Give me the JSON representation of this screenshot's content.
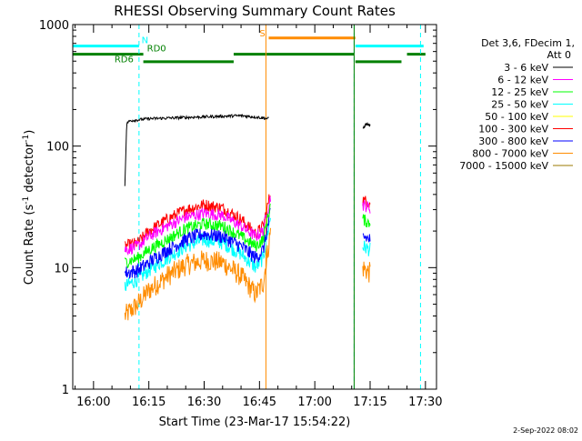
{
  "chart_data": {
    "type": "line",
    "title": "RHESSI Observing Summary Count Rates",
    "xlabel": "Start Time (23-Mar-17 15:54:22)",
    "ylabel_main": "Count Rate (s",
    "ylabel_sup1": "-1",
    "ylabel_mid": " detector",
    "ylabel_sup2": "-1",
    "ylabel_end": ")",
    "y_scale": "log",
    "ylim": [
      1,
      1000
    ],
    "xlim": [
      "15:54:22",
      "17:33:00"
    ],
    "y_ticks": [
      {
        "value": 1,
        "label": "1"
      },
      {
        "value": 10,
        "label": "10"
      },
      {
        "value": 100,
        "label": "100"
      },
      {
        "value": 1000,
        "label": "1000"
      }
    ],
    "x_ticks": [
      {
        "value": "16:00",
        "label": "16:00"
      },
      {
        "value": "16:15",
        "label": "16:15"
      },
      {
        "value": "16:30",
        "label": "16:30"
      },
      {
        "value": "16:45",
        "label": "16:45"
      },
      {
        "value": "17:00",
        "label": "17:00"
      },
      {
        "value": "17:15",
        "label": "17:15"
      },
      {
        "value": "17:30",
        "label": "17:30"
      }
    ],
    "legend_header": [
      "Det 3,6, FDecim 1,",
      "Att 0"
    ],
    "legend_placement": "right",
    "series": [
      {
        "name": "3 - 6 keV",
        "color": "#000000",
        "segments": [
          {
            "x": [
              "16:08:30",
              "16:09:00",
              "16:10:00",
              "16:15:00",
              "16:25:00",
              "16:35:00",
              "16:40:00",
              "16:45:00",
              "16:47:30"
            ],
            "y": [
              48,
              155,
              162,
              168,
              172,
              176,
              178,
              172,
              168
            ]
          },
          {
            "x": [
              "17:13:00",
              "17:14:00",
              "17:15:00"
            ],
            "y": [
              140,
              152,
              148
            ]
          }
        ]
      },
      {
        "name": "6 - 12 keV",
        "color": "#ff00ff",
        "segments": [
          {
            "x": [
              "16:08:30",
              "16:12:00",
              "16:15:00",
              "16:20:00",
              "16:25:00",
              "16:30:00",
              "16:35:00",
              "16:40:00",
              "16:44:00",
              "16:46:00",
              "16:47:00",
              "16:48:00"
            ],
            "y": [
              14,
              15,
              18,
              22,
              26,
              28,
              27,
              22,
              18,
              20,
              28,
              38
            ]
          },
          {
            "x": [
              "17:13:00",
              "17:15:00"
            ],
            "y": [
              33,
              31
            ]
          }
        ]
      },
      {
        "name": "12 - 25 keV",
        "color": "#00ff00",
        "segments": [
          {
            "x": [
              "16:08:30",
              "16:12:00",
              "16:15:00",
              "16:20:00",
              "16:25:00",
              "16:30:00",
              "16:35:00",
              "16:40:00",
              "16:44:00",
              "16:46:00",
              "16:47:00",
              "16:48:00"
            ],
            "y": [
              11,
              12,
              14,
              17,
              21,
              23,
              22,
              18,
              15,
              17,
              24,
              33
            ]
          },
          {
            "x": [
              "17:13:00",
              "17:15:00"
            ],
            "y": [
              25,
              23
            ]
          }
        ]
      },
      {
        "name": "25 - 50 keV",
        "color": "#00ffff",
        "segments": [
          {
            "x": [
              "16:08:30",
              "16:12:00",
              "16:15:00",
              "16:20:00",
              "16:25:00",
              "16:30:00",
              "16:35:00",
              "16:40:00",
              "16:44:00",
              "16:46:00",
              "16:47:00",
              "16:48:00"
            ],
            "y": [
              7,
              8,
              9.5,
              12,
              15,
              17,
              16,
              13,
              10,
              12,
              18,
              26
            ]
          },
          {
            "x": [
              "17:13:00",
              "17:15:00"
            ],
            "y": [
              15,
              14
            ]
          }
        ]
      },
      {
        "name": "50 - 100 keV",
        "color": "#ffff00",
        "segments": []
      },
      {
        "name": "100 - 300 keV",
        "color": "#ff0000",
        "segments": [
          {
            "x": [
              "16:08:30",
              "16:12:00",
              "16:15:00",
              "16:20:00",
              "16:25:00",
              "16:30:00",
              "16:35:00",
              "16:40:00",
              "16:44:00",
              "16:46:00",
              "16:47:00",
              "16:48:00"
            ],
            "y": [
              15,
              16,
              20,
              25,
              30,
              33,
              31,
              25,
              19,
              22,
              30,
              42
            ]
          },
          {
            "x": [
              "17:13:00",
              "17:15:00"
            ],
            "y": [
              36,
              34
            ]
          }
        ]
      },
      {
        "name": "300 - 800 keV",
        "color": "#0000ff",
        "segments": [
          {
            "x": [
              "16:08:30",
              "16:12:00",
              "16:15:00",
              "16:20:00",
              "16:25:00",
              "16:30:00",
              "16:35:00",
              "16:40:00",
              "16:44:00",
              "16:46:00",
              "16:47:00",
              "16:48:00"
            ],
            "y": [
              9,
              9.5,
              11,
              14,
              17,
              19,
              18,
              15,
              12,
              14,
              20,
              28
            ]
          },
          {
            "x": [
              "17:13:00",
              "17:15:00"
            ],
            "y": [
              18,
              17
            ]
          }
        ]
      },
      {
        "name": "800 - 7000 keV",
        "color": "#ff8c00",
        "segments": [
          {
            "x": [
              "16:08:30",
              "16:12:00",
              "16:15:00",
              "16:20:00",
              "16:25:00",
              "16:30:00",
              "16:35:00",
              "16:40:00",
              "16:44:00",
              "16:46:00",
              "16:47:00",
              "16:48:00"
            ],
            "y": [
              4,
              5,
              6.5,
              8.5,
              10.5,
              11.5,
              11,
              8.5,
              6,
              7.5,
              12,
              20
            ]
          },
          {
            "x": [
              "17:13:00",
              "17:15:00"
            ],
            "y": [
              10,
              9
            ]
          }
        ]
      },
      {
        "name": "7000 - 15000 keV",
        "color": "#9b7a00",
        "segments": []
      }
    ],
    "vlines": [
      {
        "x": "15:54:22",
        "color": "#00ffff",
        "style": "solid"
      },
      {
        "x": "16:12:20",
        "color": "#00ffff",
        "style": "dashed"
      },
      {
        "x": "16:46:45",
        "color": "#ff8c00",
        "style": "solid"
      },
      {
        "x": "17:10:40",
        "color": "#00ffff",
        "style": "dashed"
      },
      {
        "x": "17:10:40",
        "color": "#008000",
        "style": "solid"
      },
      {
        "x": "17:28:40",
        "color": "#00ffff",
        "style": "dashed"
      }
    ],
    "flag_bars": [
      {
        "color": "#00ffff",
        "y": 665,
        "segments": [
          [
            "15:54:22",
            "16:12:20"
          ],
          [
            "17:11:00",
            "17:29:30"
          ]
        ]
      },
      {
        "color": "#008000",
        "y": 570,
        "segments": [
          [
            "15:54:22",
            "16:13:30"
          ],
          [
            "16:38:00",
            "17:10:40"
          ],
          [
            "17:25:00",
            "17:30:00"
          ]
        ]
      },
      {
        "color": "#008000",
        "y": 495,
        "segments": [
          [
            "16:13:30",
            "16:38:00"
          ],
          [
            "17:11:00",
            "17:23:30"
          ]
        ]
      },
      {
        "color": "#ff8c00",
        "y": 775,
        "segments": [
          [
            "16:47:30",
            "17:11:00"
          ]
        ]
      }
    ],
    "flag_labels": [
      {
        "text": "N",
        "color": "#00ffff",
        "x": "16:13:00",
        "y": 700
      },
      {
        "text": "RD0",
        "color": "#008000",
        "x": "16:14:30",
        "y": 600
      },
      {
        "text": "RD6",
        "color": "#008000",
        "x": "16:05:40",
        "y": 490
      },
      {
        "text": "S",
        "color": "#ff8c00",
        "x": "16:45:00",
        "y": 800
      }
    ],
    "timestamp": "2-Sep-2022 08:02"
  }
}
